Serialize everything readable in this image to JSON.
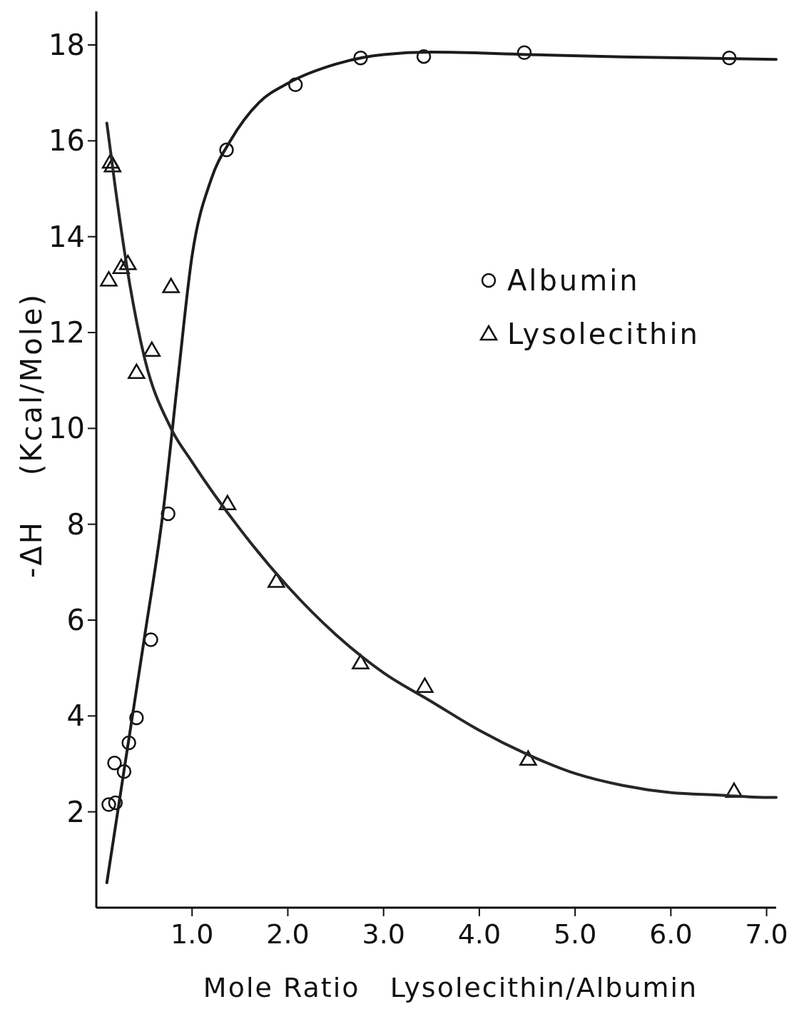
{
  "chart_data": {
    "type": "scatter",
    "xlabel": "Mole Ratio   Lysolecithin/Albumin",
    "ylabel": "-ΔH    (Kcal/Mole)",
    "xlim": [
      0,
      7.1
    ],
    "ylim": [
      0,
      18.7
    ],
    "xticks": [
      {
        "value": 1,
        "label": "1.0"
      },
      {
        "value": 2,
        "label": "2.0"
      },
      {
        "value": 3,
        "label": "3.0"
      },
      {
        "value": 4,
        "label": "4.0"
      },
      {
        "value": 5,
        "label": "5.0"
      },
      {
        "value": 6,
        "label": "6.0"
      },
      {
        "value": 7,
        "label": "7.0"
      }
    ],
    "yticks": [
      2,
      4,
      6,
      8,
      10,
      12,
      14,
      16,
      18
    ],
    "grid": false,
    "legend": "top right",
    "series": [
      {
        "name": "Albumin",
        "marker": "circle",
        "color": "#111111",
        "x": [
          0.13,
          0.2,
          0.19,
          0.29,
          0.34,
          0.42,
          0.57,
          0.75,
          1.36,
          2.08,
          2.76,
          3.42,
          4.47,
          6.61
        ],
        "values": [
          2.15,
          2.19,
          3.02,
          2.84,
          3.44,
          3.96,
          5.59,
          8.22,
          15.81,
          17.17,
          17.73,
          17.76,
          17.84,
          17.73
        ]
      },
      {
        "name": "Lysolecithin",
        "marker": "triangle",
        "color": "#111111",
        "x": [
          0.15,
          0.17,
          0.13,
          0.26,
          0.33,
          0.78,
          0.58,
          0.42,
          1.37,
          1.88,
          2.76,
          3.43,
          4.51,
          6.66
        ],
        "values": [
          15.56,
          15.48,
          13.1,
          13.36,
          13.44,
          12.96,
          11.63,
          11.17,
          8.43,
          6.81,
          5.11,
          4.62,
          3.1,
          2.43
        ]
      },
      {
        "type": "line",
        "marker": "none",
        "color": "#1c1c1c",
        "x": [
          0.11,
          0.3,
          0.5,
          0.7,
          0.85,
          1.0,
          1.2,
          1.4,
          1.7,
          2.0,
          2.5,
          3.0,
          3.5,
          4.5,
          5.5,
          7.1
        ],
        "values": [
          0.52,
          3.0,
          5.6,
          8.3,
          11,
          13.6,
          15.2,
          16.0,
          16.8,
          17.2,
          17.6,
          17.8,
          17.85,
          17.8,
          17.75,
          17.7
        ]
      },
      {
        "type": "line",
        "marker": "none",
        "color": "#262626",
        "x": [
          0.11,
          0.2,
          0.35,
          0.5,
          0.78,
          1.0,
          1.5,
          2.0,
          2.5,
          3.0,
          3.5,
          4.0,
          4.5,
          5.0,
          5.5,
          6.0,
          6.5,
          7.0,
          7.1
        ],
        "values": [
          16.37,
          15.0,
          13.0,
          11.5,
          10.0,
          9.3,
          7.9,
          6.7,
          5.7,
          4.9,
          4.3,
          3.7,
          3.2,
          2.8,
          2.55,
          2.4,
          2.35,
          2.3,
          2.3
        ]
      }
    ]
  }
}
